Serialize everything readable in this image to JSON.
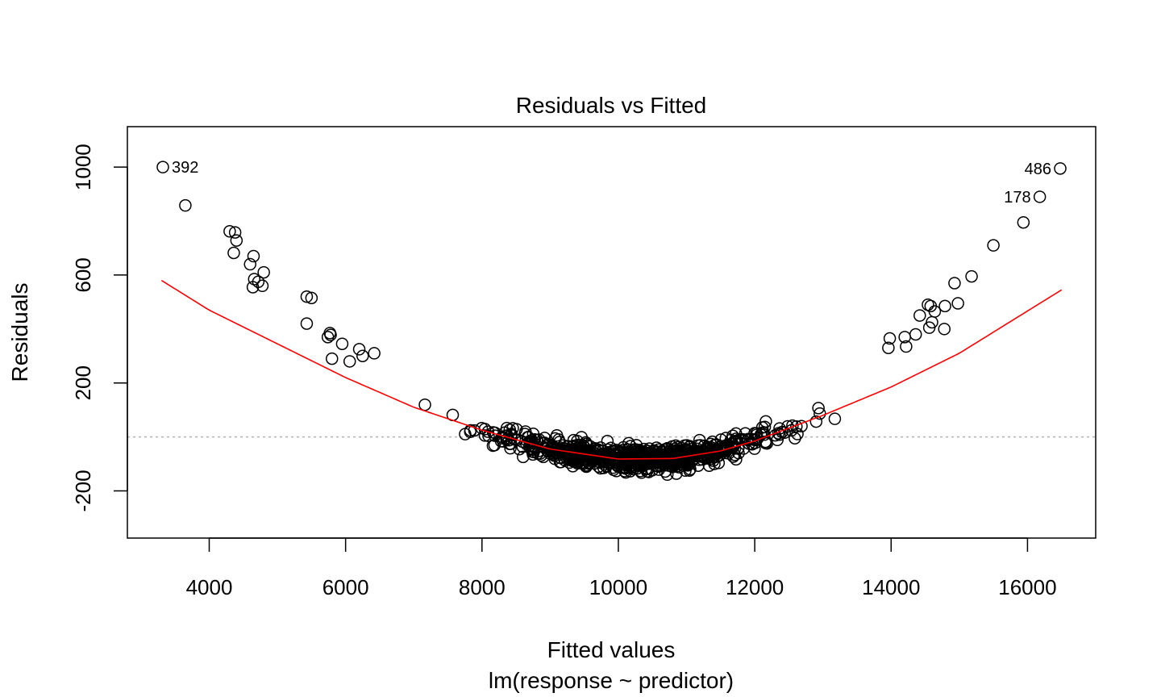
{
  "chart_data": {
    "type": "scatter",
    "title": "Residuals vs Fitted",
    "xlabel": "Fitted values",
    "subtitle": "lm(response ~ predictor)",
    "ylabel": "Residuals",
    "xlim": [
      2800,
      17000
    ],
    "ylim": [
      -375,
      1150
    ],
    "x_ticks": [
      4000,
      6000,
      8000,
      10000,
      12000,
      14000,
      16000
    ],
    "y_ticks": [
      -200,
      200,
      600,
      1000
    ],
    "reference_line": {
      "y": 0,
      "style": "dotted",
      "color": "#b3b3b3"
    },
    "smoother": {
      "color": "#ff0000",
      "x": [
        3300,
        4000,
        5000,
        6000,
        7000,
        8000,
        9000,
        10000,
        10800,
        11500,
        12000,
        13000,
        14000,
        15000,
        16500
      ],
      "y": [
        580,
        470,
        345,
        220,
        110,
        25,
        -45,
        -82,
        -80,
        -52,
        -15,
        80,
        185,
        310,
        545
      ]
    },
    "points": {
      "outliers": [
        {
          "x": 3320,
          "y": 1000,
          "label": "392"
        },
        {
          "x": 3650,
          "y": 858
        },
        {
          "x": 4300,
          "y": 762
        },
        {
          "x": 4380,
          "y": 758
        },
        {
          "x": 4400,
          "y": 728
        },
        {
          "x": 4360,
          "y": 682
        },
        {
          "x": 4650,
          "y": 670
        },
        {
          "x": 4600,
          "y": 640
        },
        {
          "x": 4800,
          "y": 610
        },
        {
          "x": 4660,
          "y": 585
        },
        {
          "x": 4720,
          "y": 575
        },
        {
          "x": 4640,
          "y": 555
        },
        {
          "x": 4780,
          "y": 560
        },
        {
          "x": 5430,
          "y": 520
        },
        {
          "x": 5500,
          "y": 515
        },
        {
          "x": 5430,
          "y": 420
        },
        {
          "x": 5770,
          "y": 385
        },
        {
          "x": 5780,
          "y": 378
        },
        {
          "x": 5740,
          "y": 370
        },
        {
          "x": 5950,
          "y": 345
        },
        {
          "x": 5800,
          "y": 290
        },
        {
          "x": 6060,
          "y": 280
        },
        {
          "x": 6200,
          "y": 325
        },
        {
          "x": 6250,
          "y": 300
        },
        {
          "x": 6420,
          "y": 310
        },
        {
          "x": 16480,
          "y": 995,
          "label": "486"
        },
        {
          "x": 16180,
          "y": 890,
          "label": "178"
        },
        {
          "x": 15940,
          "y": 795
        },
        {
          "x": 15500,
          "y": 710
        },
        {
          "x": 15180,
          "y": 595
        },
        {
          "x": 14930,
          "y": 570
        },
        {
          "x": 14980,
          "y": 495
        },
        {
          "x": 14790,
          "y": 485
        },
        {
          "x": 14540,
          "y": 490
        },
        {
          "x": 14580,
          "y": 485
        },
        {
          "x": 14640,
          "y": 465
        },
        {
          "x": 14420,
          "y": 450
        },
        {
          "x": 14600,
          "y": 425
        },
        {
          "x": 14780,
          "y": 400
        },
        {
          "x": 14560,
          "y": 405
        },
        {
          "x": 13980,
          "y": 365
        },
        {
          "x": 14200,
          "y": 370
        },
        {
          "x": 14360,
          "y": 380
        },
        {
          "x": 14220,
          "y": 335
        },
        {
          "x": 13960,
          "y": 330
        }
      ],
      "bulk": {
        "count": 780,
        "x_range": [
          6300,
          14300
        ],
        "spread": 38,
        "seed": 7
      }
    }
  }
}
